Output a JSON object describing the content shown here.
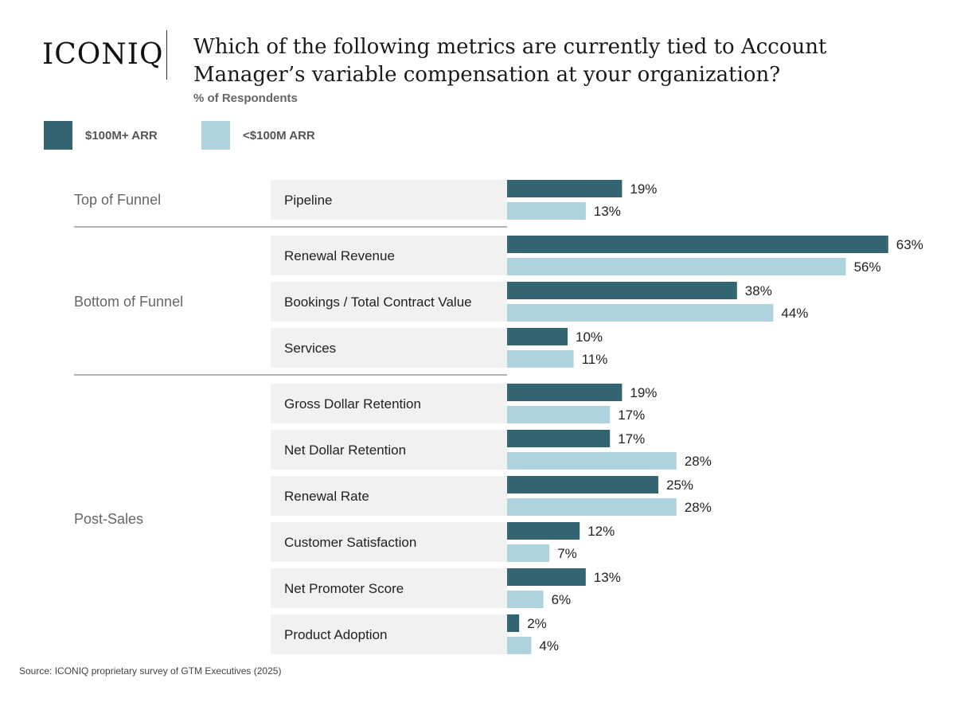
{
  "brand": {
    "logo_text": "ICONIQ"
  },
  "header": {
    "title": "Which of the following metrics are currently tied to Account Manager’s variable compensation at your organization?",
    "subtitle": "% of Respondents"
  },
  "colors": {
    "dark": "#32656f",
    "light": "#aed3dc",
    "category_bg": "#f1f1f1"
  },
  "chart_data": {
    "type": "bar",
    "orientation": "horizontal",
    "unit": "%",
    "series": [
      {
        "name": "$100M+ ARR",
        "color": "#32656f"
      },
      {
        "name": "<$100M ARR",
        "color": "#aed3dc"
      }
    ],
    "groups": [
      {
        "label": "Top of Funnel",
        "items": [
          {
            "label": "Pipeline",
            "values": [
              19,
              13
            ]
          }
        ]
      },
      {
        "label": "Bottom of Funnel",
        "items": [
          {
            "label": "Renewal Revenue",
            "values": [
              63,
              56
            ]
          },
          {
            "label": "Bookings / Total Contract Value",
            "values": [
              38,
              44
            ]
          },
          {
            "label": "Services",
            "values": [
              10,
              11
            ]
          }
        ]
      },
      {
        "label": "Post-Sales",
        "items": [
          {
            "label": "Gross Dollar Retention",
            "values": [
              19,
              17
            ]
          },
          {
            "label": "Net Dollar Retention",
            "values": [
              17,
              28
            ]
          },
          {
            "label": "Renewal Rate",
            "values": [
              25,
              28
            ]
          },
          {
            "label": "Customer Satisfaction",
            "values": [
              12,
              7
            ]
          },
          {
            "label": "Net Promoter Score",
            "values": [
              13,
              6
            ]
          },
          {
            "label": "Product Adoption",
            "values": [
              2,
              4
            ]
          }
        ]
      }
    ]
  },
  "footer": {
    "source": "Source: ICONIQ proprietary survey of GTM Executives (2025)"
  }
}
